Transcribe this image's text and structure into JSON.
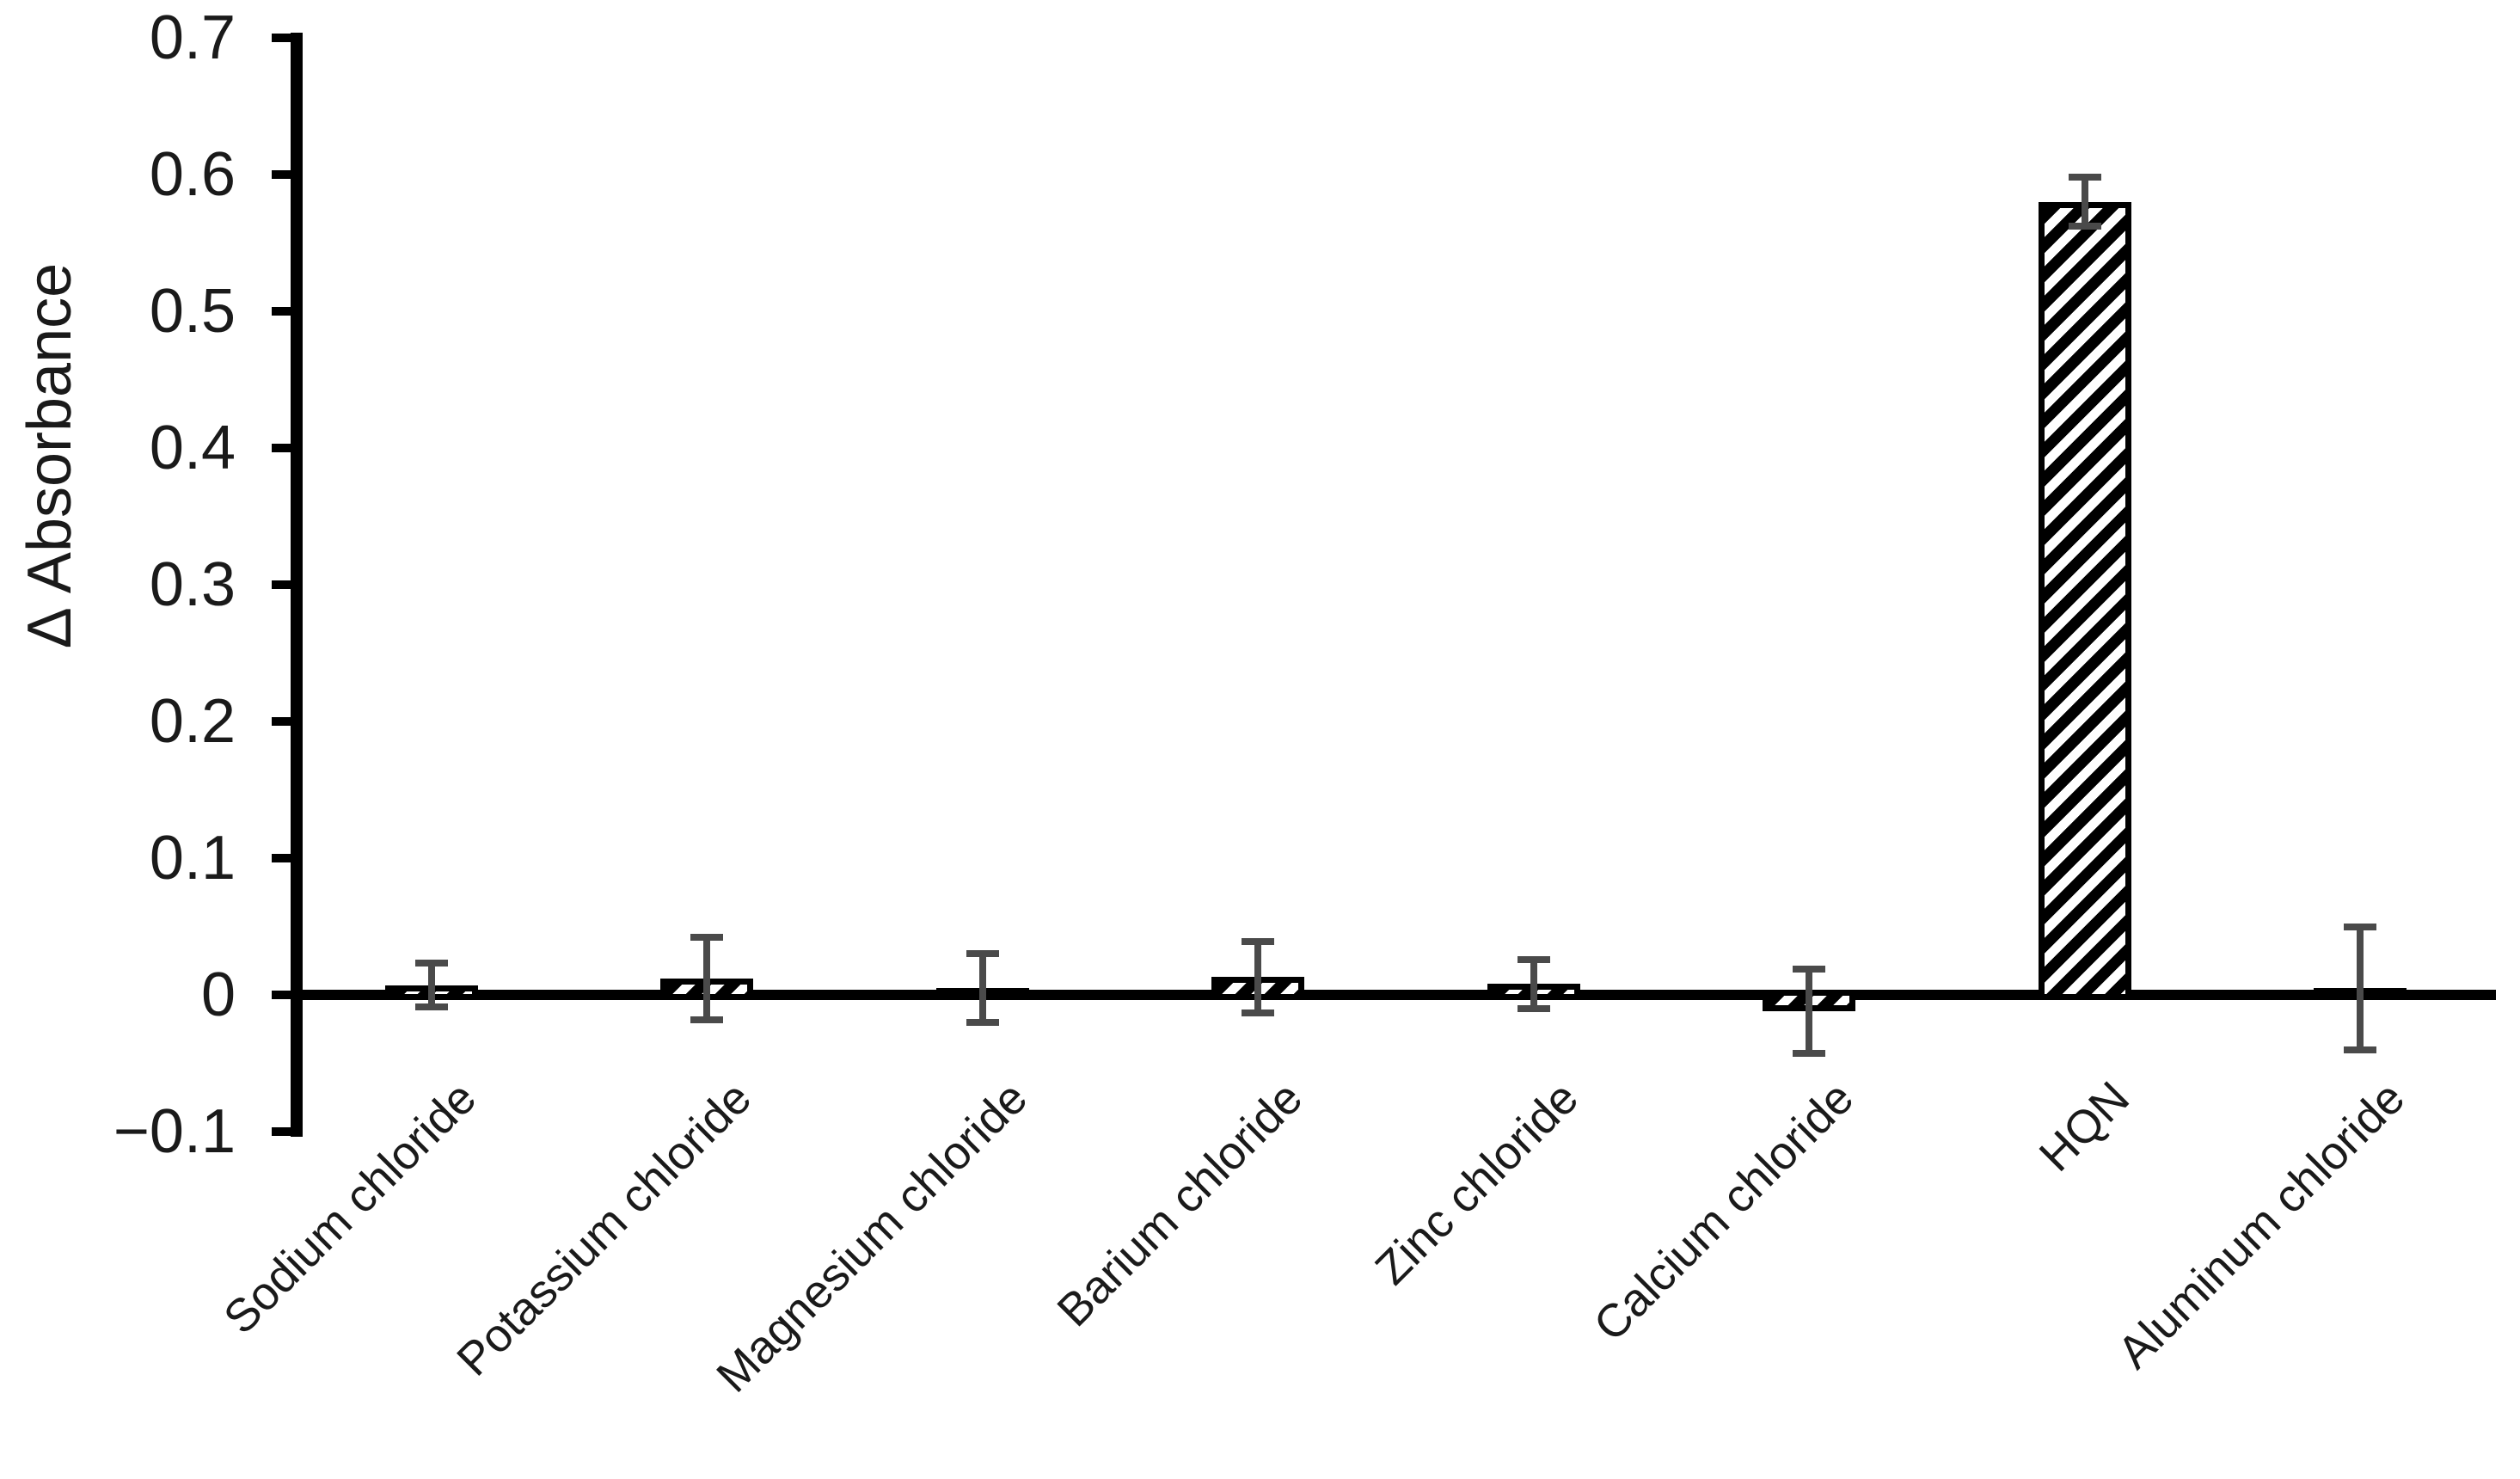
{
  "chart_data": {
    "type": "bar",
    "title": "",
    "xlabel": "",
    "ylabel": "Δ Absorbance",
    "ylim": [
      -0.1,
      0.7
    ],
    "grid": false,
    "legend": "none",
    "yticks": [
      {
        "label": "0.7",
        "value": 0.7
      },
      {
        "label": "0.6",
        "value": 0.6
      },
      {
        "label": "0.5",
        "value": 0.5
      },
      {
        "label": "0.4",
        "value": 0.4
      },
      {
        "label": "0.3",
        "value": 0.3
      },
      {
        "label": "0.2",
        "value": 0.2
      },
      {
        "label": "0.1",
        "value": 0.1
      },
      {
        "label": "0",
        "value": 0
      },
      {
        "label": "−0.1",
        "value": -0.1
      }
    ],
    "categories": [
      "Sodium chloride",
      "Potassium chloride",
      "Magnesium chloride",
      "Barium chloride",
      "Zinc chloride",
      "Calcium chloride",
      "HQN",
      "Aluminum chloride"
    ],
    "series": [
      {
        "name": "Δ Absorbance",
        "values": [
          0.007,
          0.012,
          0.005,
          0.013,
          0.008,
          -0.012,
          0.58,
          0.005
        ],
        "errors": [
          0.016,
          0.03,
          0.025,
          0.026,
          0.018,
          0.031,
          0.018,
          0.045
        ]
      }
    ],
    "style": {
      "bar_fill": "diagonal-hatch",
      "hatch_direction": "bottom-left-to-top-right",
      "bar_border_color": "#000000",
      "hatch_background": "#ffffff",
      "error_bar_color": "#4a4a4a",
      "axis_color": "#000000",
      "text_color": "#1a1a1a",
      "background": "#ffffff"
    }
  }
}
